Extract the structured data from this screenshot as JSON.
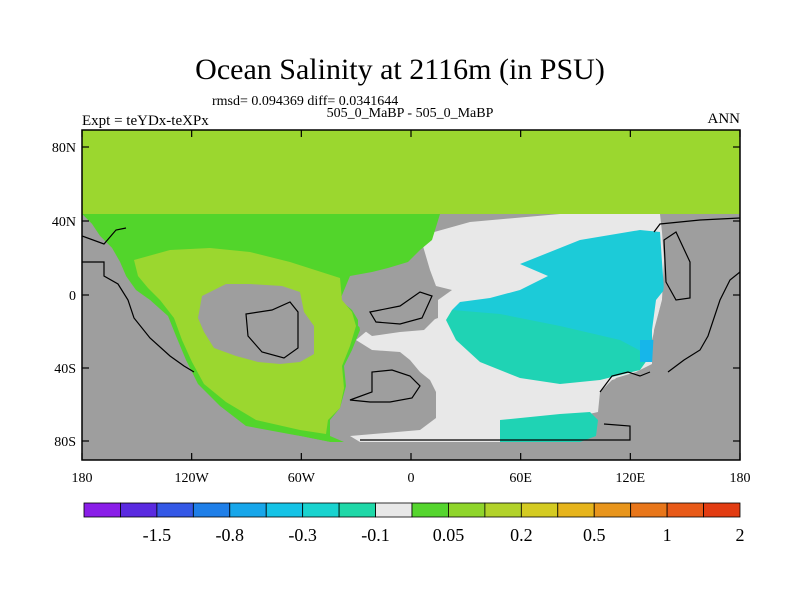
{
  "title": "Ocean Salinity at 2116m (in PSU)",
  "stats": "rmsd= 0.094369 diff= 0.0341644",
  "case_label": "505_0_MaBP - 505_0_MaBP",
  "experiment": "Expt = teYDx-teXPx",
  "season": "ANN",
  "colors": {
    "land": "#9e9e9e",
    "near_zero": "#e8e8e8",
    "green_light": "#9bd72f",
    "green_mid": "#6bd42a",
    "green": "#52d52b",
    "cyan_teal": "#1fd3b4",
    "cyan": "#1ccbd8",
    "blue_light": "#16b6ea"
  },
  "chart_data": {
    "type": "heatmap",
    "title": "Ocean Salinity at 2116m (in PSU)",
    "x_ticks": [
      "180",
      "120W",
      "60W",
      "0",
      "60E",
      "120E",
      "180"
    ],
    "y_ticks": [
      "80N",
      "40N",
      "0",
      "40S",
      "80S"
    ],
    "x_range": [
      -180,
      180
    ],
    "y_range": [
      -90,
      90
    ],
    "colorbar": {
      "colors": [
        "#8a1ee8",
        "#5a2ae0",
        "#3458e6",
        "#1f7fe8",
        "#17a6ea",
        "#15c3e6",
        "#19d3cf",
        "#1fd8a8",
        "#e8e8e8",
        "#55d52e",
        "#8fd52b",
        "#b2d22a",
        "#d4cb22",
        "#e6b41c",
        "#e8951c",
        "#e8761a",
        "#e85a18",
        "#e23c12"
      ],
      "labels": [
        "-1.5",
        "-0.8",
        "-0.3",
        "-0.1",
        "0.05",
        "0.2",
        "0.5",
        "1",
        "2"
      ]
    }
  }
}
